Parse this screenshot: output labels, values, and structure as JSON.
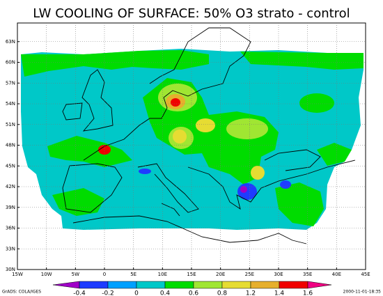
{
  "title": "LW COOLING OF SURFACE: 50% O3 strato - control",
  "lon_labels": [
    "15W",
    "10W",
    "5W",
    "0",
    "5E",
    "10E",
    "15E",
    "20E",
    "25E",
    "30E",
    "35E",
    "40E",
    "45E"
  ],
  "lat_labels": [
    "30N",
    "33N",
    "36N",
    "39N",
    "42N",
    "45N",
    "48N",
    "51N",
    "54N",
    "57N",
    "60N",
    "63N"
  ],
  "colorbar_labels": [
    "-0.4",
    "-0.2",
    "0",
    "0.4",
    "0.6",
    "0.8",
    "1.2",
    "1.4",
    "1.6"
  ],
  "footer_left": "GrADS: COLA/IGES",
  "footer_right": "2000-11-01-18:35"
}
